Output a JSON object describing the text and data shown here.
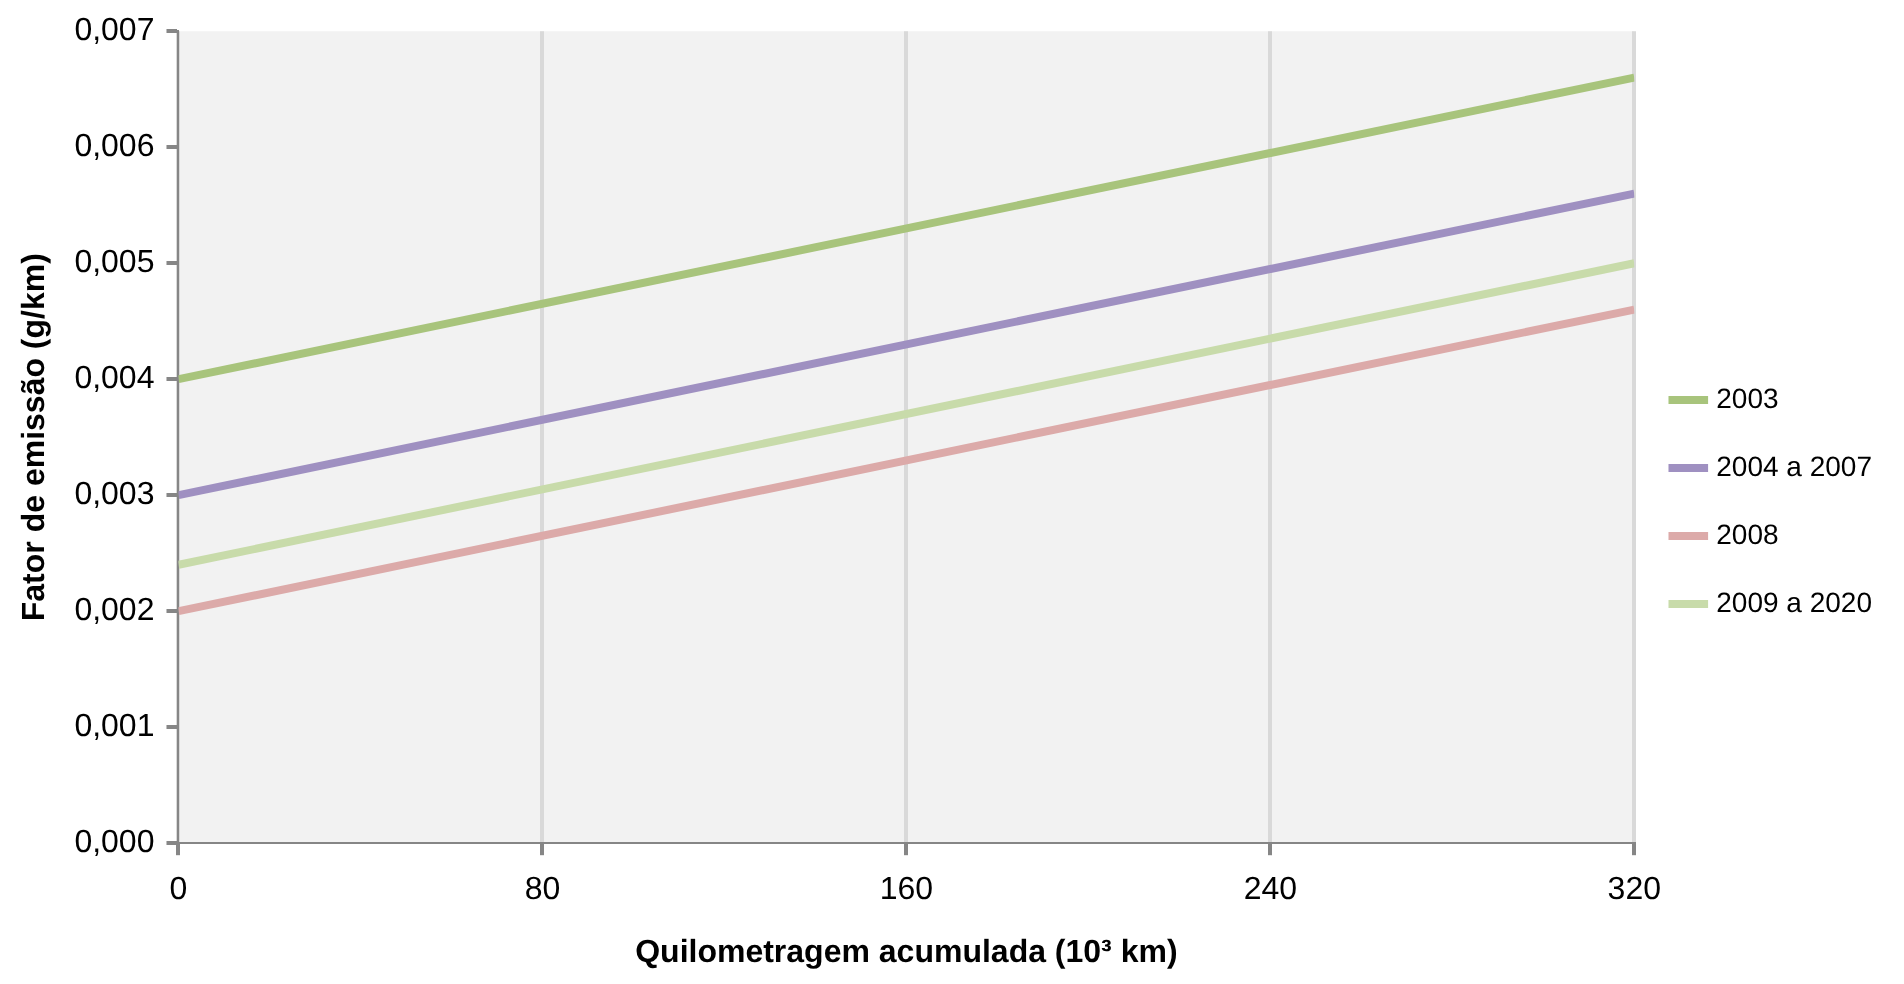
{
  "chart_data": {
    "type": "line",
    "xlabel": "Quilometragem acumulada (10³ km)",
    "ylabel": "Fator de emissão (g/km)",
    "x": [
      0,
      320
    ],
    "series": [
      {
        "name": "2003",
        "color": "#a8c47c",
        "values": [
          0.004,
          0.0066
        ]
      },
      {
        "name": "2004 a 2007",
        "color": "#9f90c1",
        "values": [
          0.003,
          0.0056
        ]
      },
      {
        "name": "2008",
        "color": "#dcaaa9",
        "values": [
          0.002,
          0.0046
        ]
      },
      {
        "name": "2009 a 2020",
        "color": "#c8dbaa",
        "values": [
          0.0024,
          0.005
        ]
      }
    ],
    "xlim": [
      0,
      320
    ],
    "xticks": [
      0,
      80,
      160,
      240,
      320
    ],
    "ylim": [
      0,
      0.007
    ],
    "yticks": [
      {
        "value": 0,
        "label": "0,000"
      },
      {
        "value": 0.001,
        "label": "0,001"
      },
      {
        "value": 0.002,
        "label": "0,002"
      },
      {
        "value": 0.003,
        "label": "0,003"
      },
      {
        "value": 0.004,
        "label": "0,004"
      },
      {
        "value": 0.005,
        "label": "0,005"
      },
      {
        "value": 0.006,
        "label": "0,006"
      },
      {
        "value": 0.007,
        "label": "0,007"
      }
    ],
    "grid": "x",
    "legend": "right",
    "marker": "none",
    "line_style": "solid"
  }
}
